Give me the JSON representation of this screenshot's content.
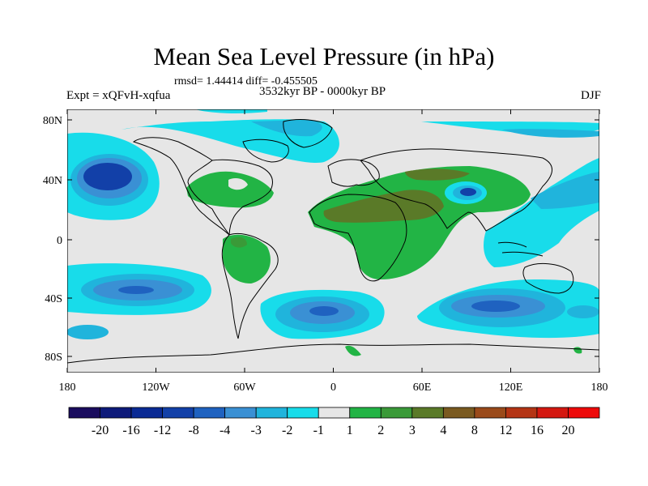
{
  "title": "Mean Sea Level Pressure (in hPa)",
  "stats_line": "rmsd= 1.44414 diff= -0.455505",
  "period": "3532kyr BP - 0000kyr BP",
  "experiment": "Expt = xQFvH-xqfua",
  "season": "DJF",
  "lat_ticks": [
    "80N",
    "40N",
    "0",
    "40S",
    "80S"
  ],
  "lon_ticks": [
    "180",
    "120W",
    "60W",
    "0",
    "60E",
    "120E",
    "180"
  ],
  "colorbar": {
    "labels": [
      "-20",
      "-16",
      "-12",
      "-8",
      "-4",
      "-3",
      "-2",
      "-1",
      "1",
      "2",
      "3",
      "4",
      "8",
      "12",
      "16",
      "20"
    ],
    "colors": [
      "#1a0c5e",
      "#0d1a7a",
      "#0a2a94",
      "#1240a8",
      "#1f62c0",
      "#3a90d4",
      "#20b4dc",
      "#18dcea",
      "#e6e6e6",
      "#22b445",
      "#3a9a38",
      "#5a7a28",
      "#7a5a20",
      "#9a4a1a",
      "#b43414",
      "#d41810",
      "#ee0a0a"
    ]
  },
  "palette": {
    "ocean_bg": "#e6e6e6",
    "cyan": "#18dcea",
    "light_blue": "#20b4dc",
    "mid_blue": "#3a90d4",
    "blue": "#1f62c0",
    "dark_blue": "#1240a8",
    "green": "#22b445",
    "dark_green": "#3a9a38",
    "olive": "#5a7a28"
  }
}
